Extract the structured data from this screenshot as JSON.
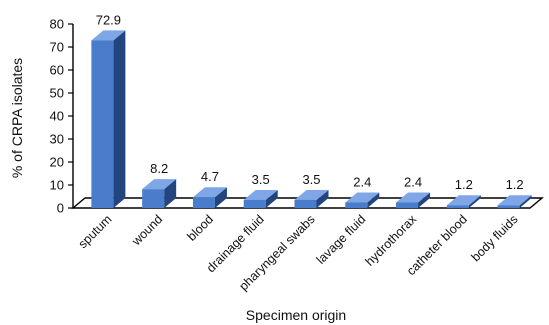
{
  "chart_data": {
    "type": "bar",
    "title": "",
    "xlabel": "Specimen origin",
    "ylabel": "% of CRPA isolates",
    "ylim": [
      0,
      80
    ],
    "yticks": [
      0,
      10,
      20,
      30,
      40,
      50,
      60,
      70,
      80
    ],
    "categories": [
      "sputum",
      "wound",
      "blood",
      "drainage fluid",
      "pharyngeal swabs",
      "lavage fluid",
      "hydrothorax",
      "catheter blood",
      "body fluids"
    ],
    "values": [
      72.9,
      8.2,
      4.7,
      3.5,
      3.5,
      2.4,
      2.4,
      1.2,
      1.2
    ],
    "data_labels": [
      "72.9",
      "8.2",
      "4.7",
      "3.5",
      "3.5",
      "2.4",
      "2.4",
      "1.2",
      "1.2"
    ],
    "grid": false,
    "legend": "none",
    "style": "3d-bar",
    "colors": {
      "bar_front": "#4a7ccc",
      "bar_side": "#23457f",
      "bar_top": "#7fa6e6",
      "axis": "#000000"
    }
  }
}
